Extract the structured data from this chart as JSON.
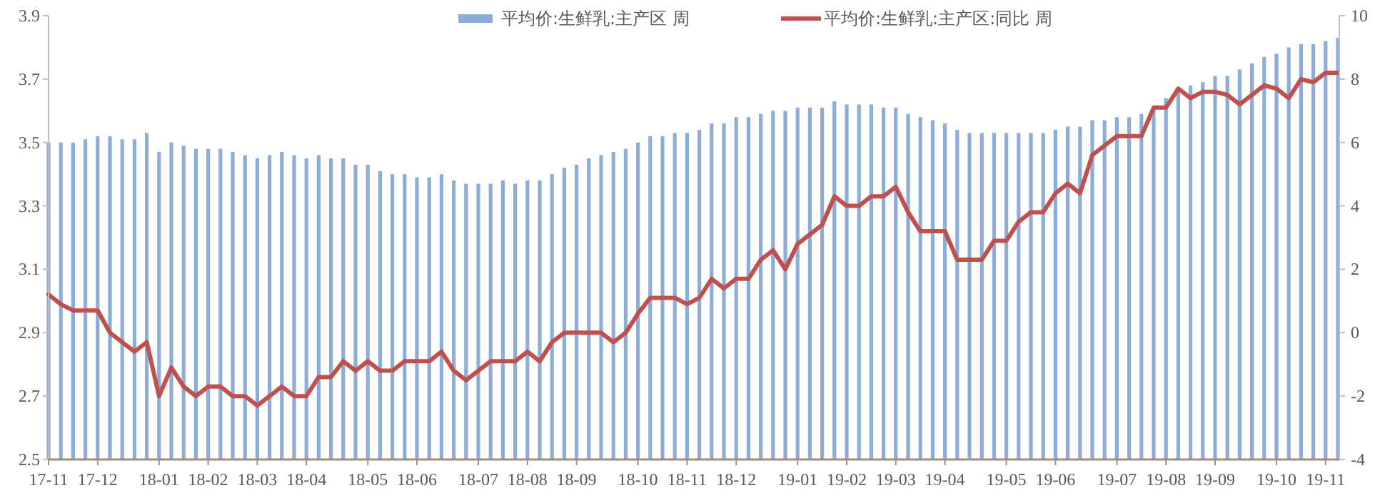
{
  "chart_data": {
    "type": "bar",
    "categories": [
      "17-11",
      null,
      null,
      null,
      "17-12",
      null,
      null,
      null,
      null,
      "18-01",
      null,
      null,
      null,
      "18-02",
      null,
      null,
      null,
      "18-03",
      null,
      null,
      null,
      "18-04",
      null,
      null,
      null,
      null,
      "18-05",
      null,
      null,
      null,
      "18-06",
      null,
      null,
      null,
      null,
      "18-07",
      null,
      null,
      null,
      "18-08",
      null,
      null,
      null,
      "18-09",
      null,
      null,
      null,
      null,
      "18-10",
      null,
      null,
      null,
      "18-11",
      null,
      null,
      null,
      "18-12",
      null,
      null,
      null,
      null,
      "19-01",
      null,
      null,
      null,
      "19-02",
      null,
      null,
      null,
      "19-03",
      null,
      null,
      null,
      "19-04",
      null,
      null,
      null,
      null,
      "19-05",
      null,
      null,
      null,
      "19-06",
      null,
      null,
      null,
      null,
      "19-07",
      null,
      null,
      null,
      "19-08",
      null,
      null,
      null,
      "19-09",
      null,
      null,
      null,
      null,
      "19-10",
      null,
      null,
      null,
      "19-11",
      null
    ],
    "series": [
      {
        "name": "平均价:生鲜乳:主产区 周",
        "color": "#8dacd8",
        "values": [
          3.5,
          3.5,
          3.5,
          3.51,
          3.52,
          3.52,
          3.51,
          3.51,
          3.53,
          3.47,
          3.5,
          3.49,
          3.48,
          3.48,
          3.48,
          3.47,
          3.46,
          3.45,
          3.46,
          3.47,
          3.46,
          3.45,
          3.46,
          3.45,
          3.45,
          3.43,
          3.43,
          3.41,
          3.4,
          3.4,
          3.39,
          3.39,
          3.4,
          3.38,
          3.37,
          3.37,
          3.37,
          3.38,
          3.37,
          3.38,
          3.38,
          3.4,
          3.42,
          3.43,
          3.45,
          3.46,
          3.47,
          3.48,
          3.5,
          3.52,
          3.52,
          3.53,
          3.53,
          3.54,
          3.56,
          3.56,
          3.58,
          3.58,
          3.59,
          3.6,
          3.6,
          3.61,
          3.61,
          3.61,
          3.63,
          3.62,
          3.62,
          3.62,
          3.61,
          3.61,
          3.59,
          3.58,
          3.57,
          3.56,
          3.54,
          3.53,
          3.53,
          3.53,
          3.53,
          3.53,
          3.53,
          3.53,
          3.54,
          3.55,
          3.55,
          3.57,
          3.57,
          3.58,
          3.58,
          3.59,
          3.61,
          3.64,
          3.66,
          3.68,
          3.69,
          3.71,
          3.71,
          3.73,
          3.75,
          3.77,
          3.78,
          3.8,
          3.81,
          3.81,
          3.82,
          3.83
        ]
      },
      {
        "name": "平均价:生鲜乳:主产区:同比 周",
        "type": "line",
        "axis": "y2",
        "color": "#c0504d",
        "values": [
          1.2,
          0.9,
          0.7,
          0.7,
          0.7,
          0.0,
          -0.3,
          -0.6,
          -0.3,
          -2.0,
          -1.1,
          -1.7,
          -2.0,
          -1.7,
          -1.7,
          -2.0,
          -2.0,
          -2.3,
          -2.0,
          -1.7,
          -2.0,
          -2.0,
          -1.4,
          -1.4,
          -0.9,
          -1.2,
          -0.9,
          -1.2,
          -1.2,
          -0.9,
          -0.9,
          -0.9,
          -0.6,
          -1.2,
          -1.5,
          -1.2,
          -0.9,
          -0.9,
          -0.9,
          -0.6,
          -0.9,
          -0.3,
          0.0,
          0.0,
          0.0,
          0.0,
          -0.3,
          0.0,
          0.6,
          1.1,
          1.1,
          1.1,
          0.9,
          1.1,
          1.7,
          1.4,
          1.7,
          1.7,
          2.3,
          2.6,
          2.0,
          2.8,
          3.1,
          3.4,
          4.3,
          4.0,
          4.0,
          4.3,
          4.3,
          4.6,
          3.8,
          3.2,
          3.2,
          3.2,
          2.3,
          2.3,
          2.3,
          2.9,
          2.9,
          3.5,
          3.8,
          3.8,
          4.4,
          4.7,
          4.4,
          5.6,
          5.9,
          6.2,
          6.2,
          6.2,
          7.1,
          7.1,
          7.7,
          7.4,
          7.6,
          7.6,
          7.5,
          7.2,
          7.5,
          7.8,
          7.7,
          7.4,
          8.0,
          7.9,
          8.2,
          8.2
        ]
      }
    ],
    "ylim": [
      2.5,
      3.9
    ],
    "yticks": [
      2.5,
      2.7,
      2.9,
      3.1,
      3.3,
      3.5,
      3.7,
      3.9
    ],
    "y2lim": [
      -4,
      10
    ],
    "y2ticks": [
      -4,
      -2,
      0,
      2,
      4,
      6,
      8,
      10
    ],
    "legend": "top",
    "grid": false,
    "marker": "none",
    "line_style": "solid"
  }
}
